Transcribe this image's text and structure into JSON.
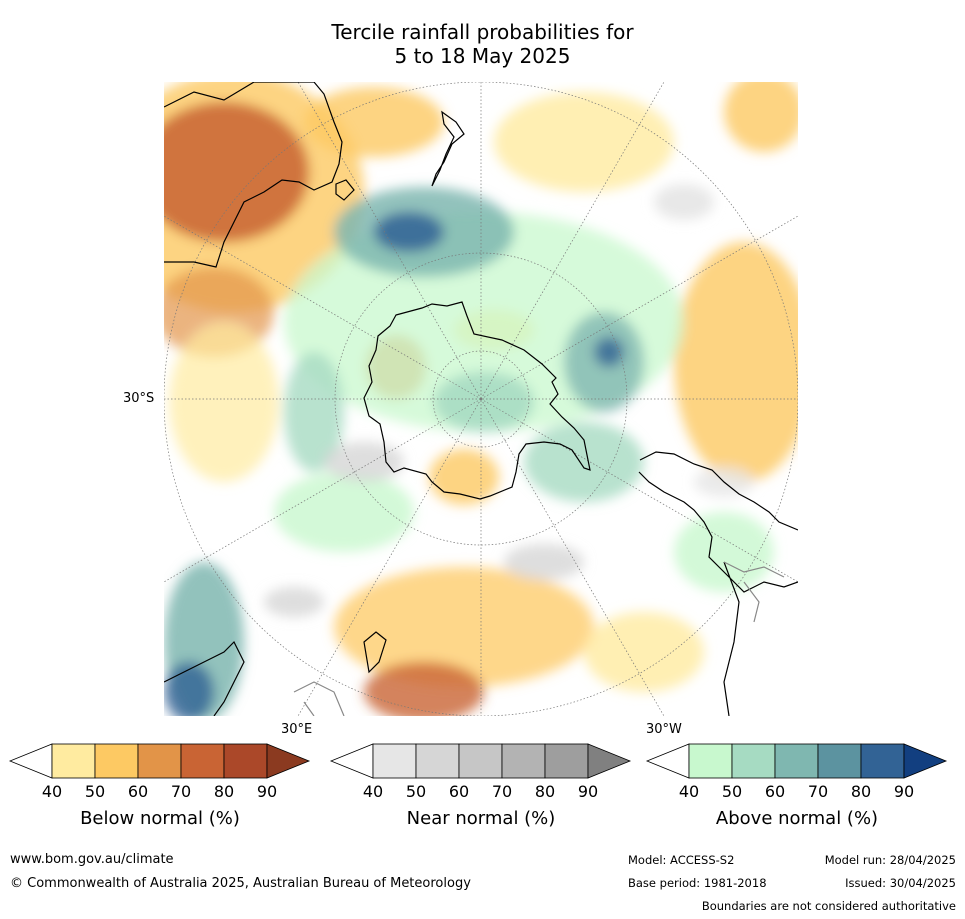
{
  "title": {
    "line1": "Tercile rainfall probabilities for",
    "line2": "5 to 18 May 2025"
  },
  "map": {
    "lat_label": "30°S",
    "lon_labels": [
      "30°E",
      "30°W"
    ]
  },
  "colorbars": [
    {
      "name": "below",
      "title": "Below normal (%)",
      "ticks": [
        "40",
        "50",
        "60",
        "70",
        "80",
        "90"
      ],
      "colors": [
        "#ffffff",
        "#ffeba0",
        "#fdc963",
        "#e29448",
        "#c96434",
        "#ab4829",
        "#8b3a20"
      ]
    },
    {
      "name": "near",
      "title": "Near normal (%)",
      "ticks": [
        "40",
        "50",
        "60",
        "70",
        "80",
        "90"
      ],
      "colors": [
        "#ffffff",
        "#e6e6e6",
        "#d6d6d6",
        "#c6c6c6",
        "#b3b3b3",
        "#9e9e9e",
        "#808080"
      ]
    },
    {
      "name": "above",
      "title": "Above normal (%)",
      "ticks": [
        "40",
        "50",
        "60",
        "70",
        "80",
        "90"
      ],
      "colors": [
        "#ffffff",
        "#c8f8ce",
        "#a6dbc2",
        "#7fb7b0",
        "#5c93a0",
        "#326395",
        "#123f80"
      ]
    }
  ],
  "footer": {
    "url": "www.bom.gov.au/climate",
    "copyright": "© Commonwealth of Australia 2025, Australian Bureau of Meteorology",
    "model": "Model: ACCESS-S2",
    "base_period": "Base period: 1981-2018",
    "model_run": "Model run: 28/04/2025",
    "issued": "Issued: 30/04/2025",
    "disclaimer": "Boundaries are not considered authoritative"
  }
}
